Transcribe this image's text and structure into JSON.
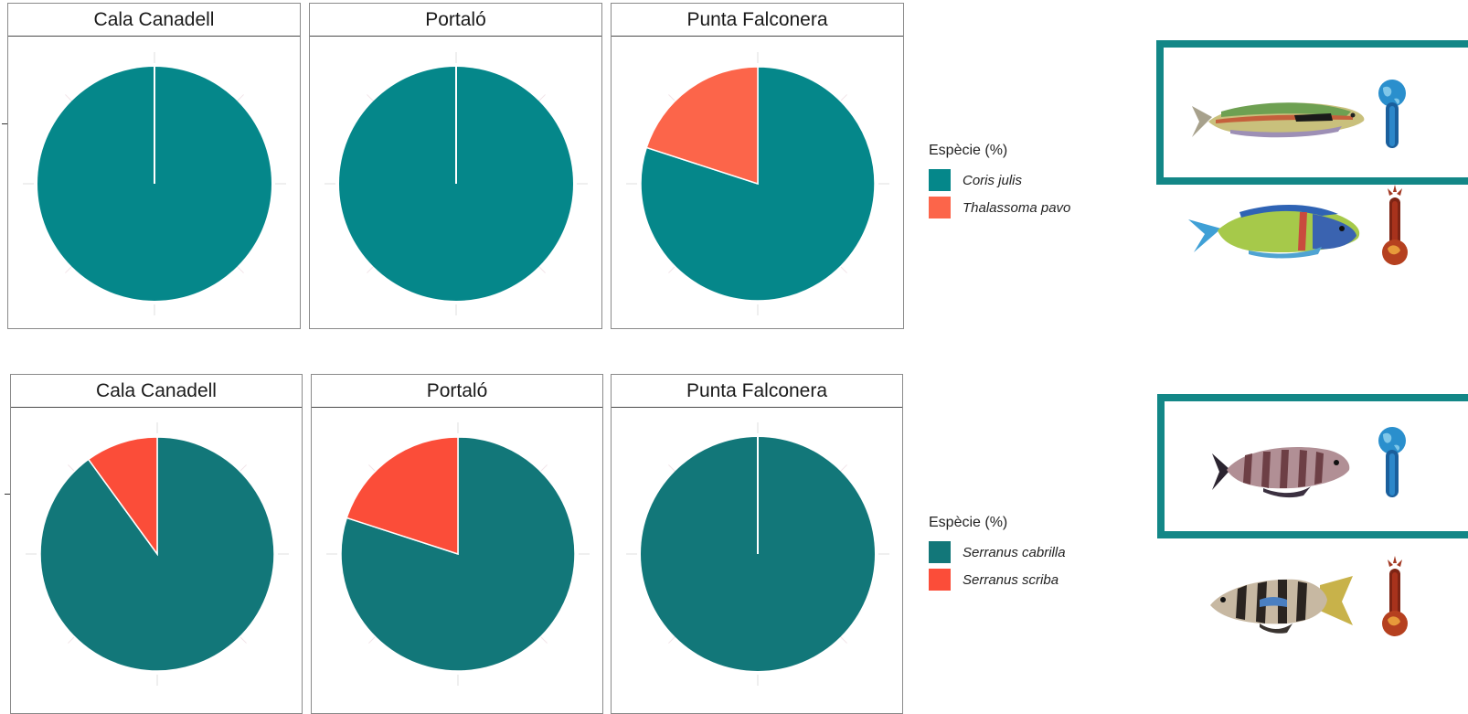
{
  "chart_data": [
    {
      "type": "pie",
      "facets": [
        "Cala Canadell",
        "Portaló",
        "Punta Falconera"
      ],
      "legend_title": "Espècie (%)",
      "series": [
        {
          "name": "Coris julis",
          "color": "#05878A",
          "values": [
            100,
            100,
            80
          ]
        },
        {
          "name": "Thalassoma pavo",
          "color": "#FC654A",
          "values": [
            0,
            0,
            20
          ]
        }
      ],
      "legend_position": "right"
    },
    {
      "type": "pie",
      "facets": [
        "Cala Canadell",
        "Portaló",
        "Punta Falconera"
      ],
      "legend_title": "Espècie (%)",
      "series": [
        {
          "name": "Serranus cabrilla",
          "color": "#127779",
          "values": [
            90,
            80,
            100
          ]
        },
        {
          "name": "Serranus scriba",
          "color": "#FB4D39",
          "values": [
            10,
            20,
            0
          ]
        }
      ],
      "legend_position": "right"
    }
  ],
  "illustrations": [
    {
      "fish_icon": "coris-julis-fish-icon",
      "thermo_icon": "cold-thermometer-icon",
      "highlighted": true
    },
    {
      "fish_icon": "thalassoma-pavo-fish-icon",
      "thermo_icon": "hot-thermometer-icon",
      "highlighted": false
    },
    {
      "fish_icon": "serranus-cabrilla-fish-icon",
      "thermo_icon": "cold-thermometer-icon",
      "highlighted": true
    },
    {
      "fish_icon": "serranus-scriba-fish-icon",
      "thermo_icon": "hot-thermometer-icon",
      "highlighted": false
    }
  ]
}
